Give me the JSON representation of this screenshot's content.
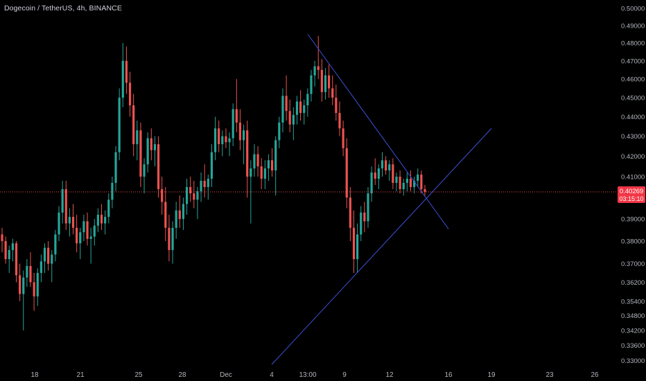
{
  "symbol": {
    "title": "Dogecoin / TetherUS, 4h, BINANCE"
  },
  "colors": {
    "background": "#000000",
    "up_candle": "#26a69a",
    "down_candle": "#ef5350",
    "trendline": "#3f51d8",
    "axis_text": "#b2b5be",
    "price_line": "#ef5350",
    "price_label_bg": "#f23645"
  },
  "chart_data": {
    "type": "candlestick",
    "title": "",
    "xlabel": "",
    "ylabel": "",
    "grid": false,
    "y_scale": "log",
    "ylim": [
      0.3275,
      0.5025
    ],
    "x_tick_labels": [
      "18",
      "21",
      "25",
      "28",
      "Dec",
      "4",
      "13:00",
      "9",
      "12",
      "16",
      "19",
      "23",
      "26"
    ],
    "y_tick_labels": [
      "0.50000",
      "0.49000",
      "0.48000",
      "0.47000",
      "0.46000",
      "0.45000",
      "0.44000",
      "0.43000",
      "0.42000",
      "0.41000",
      "0.39000",
      "0.38000",
      "0.37000",
      "0.36200",
      "0.35400",
      "0.34800",
      "0.34200",
      "0.33600",
      "0.33000"
    ],
    "y_ticks": [
      0.5,
      0.49,
      0.48,
      0.47,
      0.46,
      0.45,
      0.44,
      0.43,
      0.42,
      0.41,
      0.39,
      0.38,
      0.37,
      0.362,
      0.354,
      0.348,
      0.342,
      0.336,
      0.33
    ],
    "last_price": {
      "price": 0.40269,
      "label": "0.40269",
      "countdown": "03:15:10"
    },
    "ohlc_series": [
      [
        0.383,
        0.386,
        0.375,
        0.38
      ],
      [
        0.38,
        0.382,
        0.37,
        0.372
      ],
      [
        0.372,
        0.378,
        0.366,
        0.376
      ],
      [
        0.376,
        0.381,
        0.371,
        0.379
      ],
      [
        0.379,
        0.38,
        0.362,
        0.365
      ],
      [
        0.365,
        0.37,
        0.354,
        0.357
      ],
      [
        0.357,
        0.367,
        0.342,
        0.364
      ],
      [
        0.364,
        0.372,
        0.36,
        0.369
      ],
      [
        0.369,
        0.375,
        0.36,
        0.362
      ],
      [
        0.362,
        0.366,
        0.35,
        0.356
      ],
      [
        0.356,
        0.368,
        0.352,
        0.366
      ],
      [
        0.366,
        0.374,
        0.362,
        0.371
      ],
      [
        0.371,
        0.379,
        0.366,
        0.377
      ],
      [
        0.377,
        0.38,
        0.367,
        0.37
      ],
      [
        0.37,
        0.376,
        0.362,
        0.374
      ],
      [
        0.374,
        0.385,
        0.371,
        0.383
      ],
      [
        0.383,
        0.396,
        0.38,
        0.393
      ],
      [
        0.393,
        0.408,
        0.388,
        0.404
      ],
      [
        0.404,
        0.408,
        0.385,
        0.388
      ],
      [
        0.388,
        0.395,
        0.382,
        0.391
      ],
      [
        0.391,
        0.397,
        0.383,
        0.386
      ],
      [
        0.386,
        0.392,
        0.375,
        0.379
      ],
      [
        0.379,
        0.386,
        0.372,
        0.384
      ],
      [
        0.384,
        0.392,
        0.38,
        0.389
      ],
      [
        0.389,
        0.393,
        0.378,
        0.381
      ],
      [
        0.381,
        0.386,
        0.37,
        0.382
      ],
      [
        0.382,
        0.39,
        0.378,
        0.387
      ],
      [
        0.387,
        0.395,
        0.384,
        0.392
      ],
      [
        0.392,
        0.397,
        0.385,
        0.388
      ],
      [
        0.388,
        0.394,
        0.383,
        0.391
      ],
      [
        0.391,
        0.402,
        0.388,
        0.399
      ],
      [
        0.399,
        0.41,
        0.395,
        0.407
      ],
      [
        0.407,
        0.425,
        0.403,
        0.422
      ],
      [
        0.422,
        0.455,
        0.418,
        0.45
      ],
      [
        0.45,
        0.48,
        0.445,
        0.47
      ],
      [
        0.47,
        0.478,
        0.452,
        0.458
      ],
      [
        0.458,
        0.464,
        0.44,
        0.446
      ],
      [
        0.446,
        0.452,
        0.42,
        0.426
      ],
      [
        0.426,
        0.438,
        0.418,
        0.433
      ],
      [
        0.433,
        0.437,
        0.405,
        0.41
      ],
      [
        0.41,
        0.419,
        0.402,
        0.416
      ],
      [
        0.416,
        0.432,
        0.412,
        0.429
      ],
      [
        0.429,
        0.434,
        0.418,
        0.423
      ],
      [
        0.423,
        0.43,
        0.415,
        0.426
      ],
      [
        0.426,
        0.43,
        0.4,
        0.404
      ],
      [
        0.404,
        0.41,
        0.392,
        0.398
      ],
      [
        0.398,
        0.405,
        0.38,
        0.386
      ],
      [
        0.386,
        0.392,
        0.371,
        0.376
      ],
      [
        0.376,
        0.389,
        0.37,
        0.386
      ],
      [
        0.386,
        0.398,
        0.381,
        0.394
      ],
      [
        0.394,
        0.401,
        0.386,
        0.39
      ],
      [
        0.39,
        0.4,
        0.385,
        0.397
      ],
      [
        0.397,
        0.409,
        0.392,
        0.405
      ],
      [
        0.405,
        0.41,
        0.398,
        0.402
      ],
      [
        0.402,
        0.408,
        0.395,
        0.399
      ],
      [
        0.399,
        0.405,
        0.39,
        0.403
      ],
      [
        0.403,
        0.412,
        0.398,
        0.408
      ],
      [
        0.408,
        0.416,
        0.4,
        0.405
      ],
      [
        0.405,
        0.411,
        0.399,
        0.409
      ],
      [
        0.409,
        0.426,
        0.405,
        0.422
      ],
      [
        0.422,
        0.44,
        0.418,
        0.434
      ],
      [
        0.434,
        0.438,
        0.422,
        0.426
      ],
      [
        0.426,
        0.433,
        0.42,
        0.43
      ],
      [
        0.43,
        0.434,
        0.424,
        0.427
      ],
      [
        0.427,
        0.432,
        0.42,
        0.429
      ],
      [
        0.429,
        0.447,
        0.425,
        0.444
      ],
      [
        0.444,
        0.46,
        0.432,
        0.437
      ],
      [
        0.437,
        0.444,
        0.423,
        0.428
      ],
      [
        0.428,
        0.436,
        0.416,
        0.433
      ],
      [
        0.433,
        0.438,
        0.4,
        0.41
      ],
      [
        0.41,
        0.418,
        0.388,
        0.414
      ],
      [
        0.414,
        0.426,
        0.41,
        0.421
      ],
      [
        0.421,
        0.425,
        0.41,
        0.415
      ],
      [
        0.415,
        0.419,
        0.404,
        0.409
      ],
      [
        0.409,
        0.418,
        0.404,
        0.414
      ],
      [
        0.414,
        0.421,
        0.408,
        0.418
      ],
      [
        0.418,
        0.424,
        0.41,
        0.413
      ],
      [
        0.413,
        0.43,
        0.401,
        0.428
      ],
      [
        0.428,
        0.44,
        0.424,
        0.437
      ],
      [
        0.437,
        0.455,
        0.432,
        0.451
      ],
      [
        0.451,
        0.462,
        0.438,
        0.443
      ],
      [
        0.443,
        0.449,
        0.432,
        0.436
      ],
      [
        0.436,
        0.445,
        0.428,
        0.441
      ],
      [
        0.441,
        0.451,
        0.436,
        0.448
      ],
      [
        0.448,
        0.454,
        0.438,
        0.442
      ],
      [
        0.442,
        0.449,
        0.436,
        0.446
      ],
      [
        0.446,
        0.455,
        0.44,
        0.452
      ],
      [
        0.452,
        0.465,
        0.448,
        0.462
      ],
      [
        0.462,
        0.47,
        0.456,
        0.467
      ],
      [
        0.467,
        0.484,
        0.46,
        0.465
      ],
      [
        0.465,
        0.471,
        0.448,
        0.453
      ],
      [
        0.453,
        0.466,
        0.449,
        0.462
      ],
      [
        0.462,
        0.468,
        0.45,
        0.455
      ],
      [
        0.455,
        0.462,
        0.446,
        0.45
      ],
      [
        0.45,
        0.457,
        0.438,
        0.442
      ],
      [
        0.442,
        0.448,
        0.43,
        0.434
      ],
      [
        0.434,
        0.438,
        0.42,
        0.424
      ],
      [
        0.424,
        0.429,
        0.395,
        0.4
      ],
      [
        0.4,
        0.405,
        0.38,
        0.386
      ],
      [
        0.386,
        0.394,
        0.366,
        0.372
      ],
      [
        0.372,
        0.388,
        0.366,
        0.383
      ],
      [
        0.383,
        0.396,
        0.38,
        0.393
      ],
      [
        0.393,
        0.398,
        0.384,
        0.389
      ],
      [
        0.389,
        0.405,
        0.386,
        0.402
      ],
      [
        0.402,
        0.415,
        0.398,
        0.412
      ],
      [
        0.412,
        0.419,
        0.406,
        0.409
      ],
      [
        0.409,
        0.416,
        0.404,
        0.414
      ],
      [
        0.414,
        0.422,
        0.41,
        0.418
      ],
      [
        0.418,
        0.42,
        0.411,
        0.413
      ],
      [
        0.413,
        0.418,
        0.408,
        0.416
      ],
      [
        0.416,
        0.419,
        0.404,
        0.407
      ],
      [
        0.407,
        0.412,
        0.403,
        0.41
      ],
      [
        0.41,
        0.413,
        0.402,
        0.404
      ],
      [
        0.404,
        0.409,
        0.401,
        0.407
      ],
      [
        0.407,
        0.412,
        0.403,
        0.409
      ],
      [
        0.409,
        0.413,
        0.403,
        0.405
      ],
      [
        0.405,
        0.41,
        0.402,
        0.408
      ],
      [
        0.408,
        0.414,
        0.405,
        0.411
      ],
      [
        0.411,
        0.413,
        0.402,
        0.404
      ],
      [
        0.404,
        0.406,
        0.401,
        0.4027
      ]
    ],
    "trendlines": [
      {
        "name": "descending",
        "from": {
          "x": "13:00",
          "y": 0.485
        },
        "to": {
          "x": "16",
          "y": 0.3855
        }
      },
      {
        "name": "ascending",
        "from": {
          "x": "4",
          "y": 0.3285
        },
        "to": {
          "x": "19",
          "y": 0.434
        }
      }
    ]
  }
}
